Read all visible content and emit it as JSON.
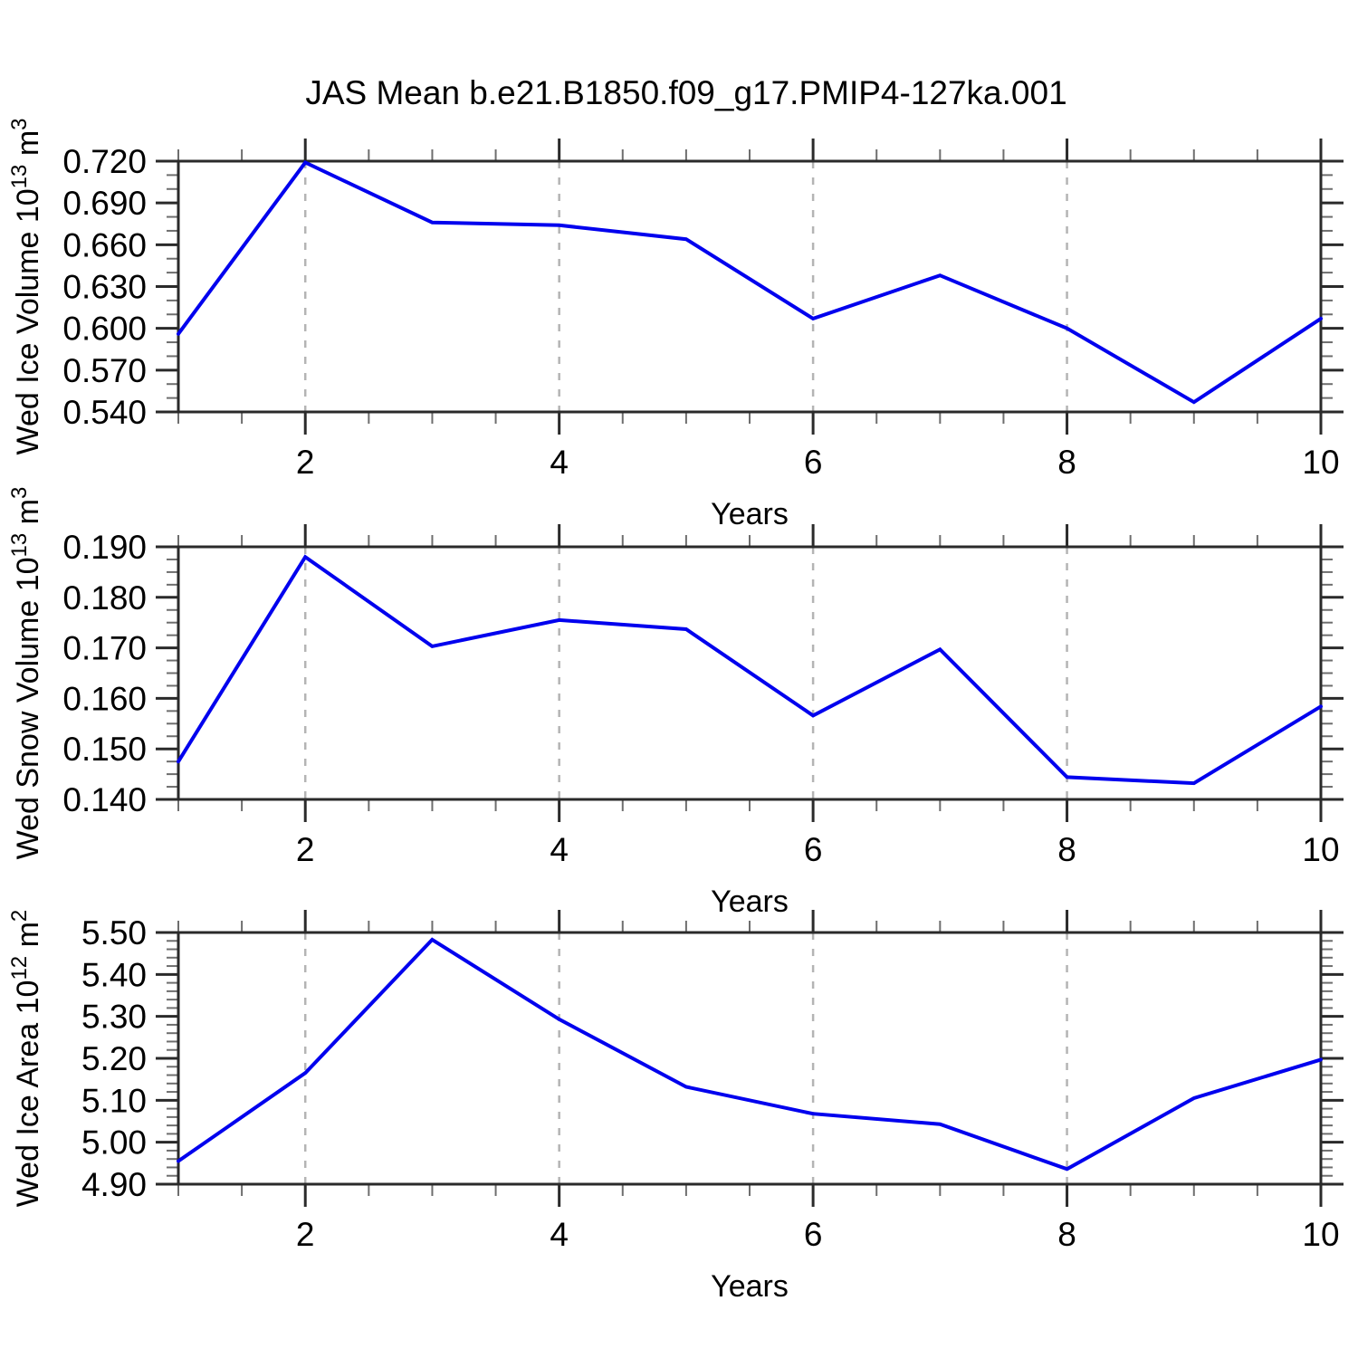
{
  "page": {
    "title": "JAS Mean b.e21.B1850.f09_g17.PMIP4-127ka.001",
    "background": "#ffffff"
  },
  "colors": {
    "line": "#0000ee",
    "axis": "#2a2a2a",
    "grid": "#b4b4b4"
  },
  "chart_data": [
    {
      "id": "wed-ice-volume",
      "type": "line",
      "x": [
        1,
        2,
        3,
        4,
        5,
        6,
        7,
        8,
        9,
        10
      ],
      "values": [
        0.596,
        0.719,
        0.676,
        0.674,
        0.664,
        0.607,
        0.638,
        0.6,
        0.547,
        0.607
      ],
      "xlabel": "Years",
      "ylabel_text": "Wed Ice Volume 10^13 m^3",
      "ylabel_segments": [
        {
          "t": "Wed Ice Volume 10"
        },
        {
          "t": "13",
          "sup": true
        },
        {
          "t": " m"
        },
        {
          "t": "3",
          "sup": true
        }
      ],
      "xlim": [
        1,
        10
      ],
      "xticks": [
        2,
        4,
        6,
        8,
        10
      ],
      "xtick_labels": [
        "2",
        "4",
        "6",
        "8",
        "10"
      ],
      "xminor_step": 0.5,
      "grid_x": [
        2,
        4,
        6,
        8
      ],
      "grid_style": "vertical-dashed",
      "ylim": [
        0.54,
        0.72
      ],
      "yticks": [
        0.54,
        0.57,
        0.6,
        0.63,
        0.66,
        0.69,
        0.72
      ],
      "ytick_labels": [
        "0.540",
        "0.570",
        "0.600",
        "0.630",
        "0.660",
        "0.690",
        "0.720"
      ],
      "ymajor_step": 0.03,
      "yminor_step": 0.01,
      "line_color": "#0000ee"
    },
    {
      "id": "wed-snow-volume",
      "type": "line",
      "x": [
        1,
        2,
        3,
        4,
        5,
        6,
        7,
        8,
        9,
        10
      ],
      "values": [
        0.1475,
        0.188,
        0.1703,
        0.1755,
        0.1737,
        0.1566,
        0.1697,
        0.1444,
        0.1432,
        0.1584
      ],
      "xlabel": "Years",
      "ylabel_text": "Wed Snow Volume 10^13 m^3",
      "ylabel_segments": [
        {
          "t": "Wed Snow Volume 10"
        },
        {
          "t": "13",
          "sup": true
        },
        {
          "t": " m"
        },
        {
          "t": "3",
          "sup": true
        }
      ],
      "xlim": [
        1,
        10
      ],
      "xticks": [
        2,
        4,
        6,
        8,
        10
      ],
      "xtick_labels": [
        "2",
        "4",
        "6",
        "8",
        "10"
      ],
      "xminor_step": 0.5,
      "grid_x": [
        2,
        4,
        6,
        8
      ],
      "grid_style": "vertical-dashed",
      "ylim": [
        0.14,
        0.19
      ],
      "yticks": [
        0.14,
        0.15,
        0.16,
        0.17,
        0.18,
        0.19
      ],
      "ytick_labels": [
        "0.140",
        "0.150",
        "0.160",
        "0.170",
        "0.180",
        "0.190"
      ],
      "ymajor_step": 0.01,
      "yminor_step": 0.0025,
      "line_color": "#0000ee"
    },
    {
      "id": "wed-ice-area",
      "type": "line",
      "x": [
        1,
        2,
        3,
        4,
        5,
        6,
        7,
        8,
        9,
        10
      ],
      "values": [
        4.955,
        5.165,
        5.483,
        5.293,
        5.132,
        5.068,
        5.043,
        4.936,
        5.105,
        5.197
      ],
      "xlabel": "Years",
      "ylabel_text": "Wed Ice Area 10^12 m^2",
      "ylabel_segments": [
        {
          "t": "Wed Ice Area 10"
        },
        {
          "t": "12",
          "sup": true
        },
        {
          "t": " m"
        },
        {
          "t": "2",
          "sup": true
        }
      ],
      "xlim": [
        1,
        10
      ],
      "xticks": [
        2,
        4,
        6,
        8,
        10
      ],
      "xtick_labels": [
        "2",
        "4",
        "6",
        "8",
        "10"
      ],
      "xminor_step": 0.5,
      "grid_x": [
        2,
        4,
        6,
        8
      ],
      "grid_style": "vertical-dashed",
      "ylim": [
        4.9,
        5.5
      ],
      "yticks": [
        4.9,
        5.0,
        5.1,
        5.2,
        5.3,
        5.4,
        5.5
      ],
      "ytick_labels": [
        "4.90",
        "5.00",
        "5.10",
        "5.20",
        "5.30",
        "5.40",
        "5.50"
      ],
      "ymajor_step": 0.1,
      "yminor_step": 0.02,
      "line_color": "#0000ee"
    }
  ]
}
